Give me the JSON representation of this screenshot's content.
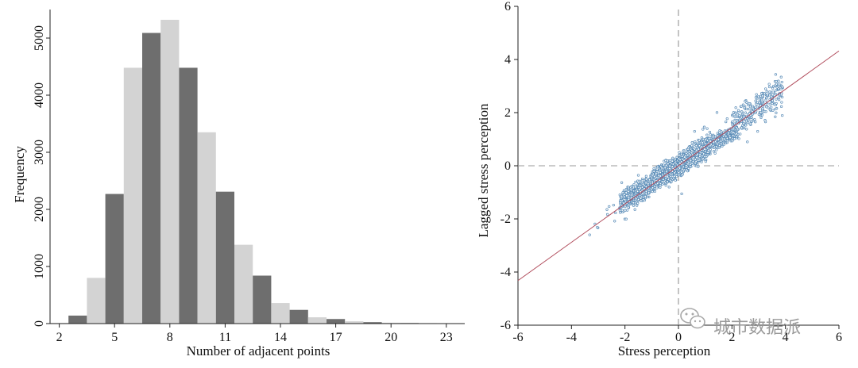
{
  "chart_data": [
    {
      "type": "bar",
      "xlabel": "Number of adjacent points",
      "ylabel": "Frequency",
      "x": [
        2,
        3,
        4,
        5,
        6,
        7,
        8,
        9,
        10,
        11,
        12,
        13,
        14,
        15,
        16,
        17,
        18,
        19,
        20,
        21,
        22,
        23
      ],
      "values": [
        10,
        140,
        800,
        2270,
        4480,
        5090,
        5320,
        4480,
        3350,
        2310,
        1380,
        840,
        360,
        240,
        110,
        80,
        40,
        25,
        15,
        10,
        8,
        5
      ],
      "bar_colors": [
        "#d3d3d3",
        "#6e6e6e"
      ],
      "xlim": [
        1.5,
        24
      ],
      "ylim": [
        0,
        5500
      ],
      "xticks": [
        2,
        5,
        8,
        11,
        14,
        17,
        20,
        23
      ],
      "xtick_labels": [
        "2",
        "5",
        "8",
        "11",
        "14",
        "17",
        "20",
        "23"
      ],
      "yticks": [
        0,
        1000,
        2000,
        3000,
        4000,
        5000
      ],
      "ytick_labels": [
        "0",
        "1000",
        "2000",
        "3000",
        "4000",
        "5000"
      ],
      "grid": false
    },
    {
      "type": "scatter",
      "xlabel": "Stress perception",
      "ylabel": "Lagged stress perception",
      "xlim": [
        -6,
        6
      ],
      "ylim": [
        -6,
        6
      ],
      "xticks": [
        -6,
        -4,
        -2,
        0,
        2,
        4,
        6
      ],
      "xtick_labels": [
        "-6",
        "-4",
        "-2",
        "0",
        "2",
        "4",
        "6"
      ],
      "yticks": [
        -6,
        -4,
        -2,
        0,
        2,
        4,
        6
      ],
      "ytick_labels": [
        "-6",
        "-4",
        "-2",
        "0",
        "2",
        "4",
        "6"
      ],
      "point_color": "#5b8db8",
      "fit_line": {
        "slope": 0.72,
        "intercept": 0,
        "color": "#b04a5a"
      },
      "reference_lines": {
        "x": 0,
        "y": 0,
        "style": "dashed",
        "color": "#999999"
      },
      "point_clusters": [
        {
          "x_range": [
            -2.2,
            -1.0
          ],
          "y_center": [
            -1.4,
            -0.7
          ],
          "y_spread": 0.55,
          "count": 500
        },
        {
          "x_range": [
            -1.0,
            0.0
          ],
          "y_center": [
            -0.6,
            -0.05
          ],
          "y_spread": 0.6,
          "count": 700
        },
        {
          "x_range": [
            0.0,
            1.2
          ],
          "y_center": [
            0.0,
            0.8
          ],
          "y_spread": 0.6,
          "count": 700
        },
        {
          "x_range": [
            1.2,
            2.2
          ],
          "y_center": [
            0.8,
            1.3
          ],
          "y_spread": 0.4,
          "count": 300
        },
        {
          "x_range": [
            2.0,
            3.9
          ],
          "y_center": [
            1.5,
            2.9
          ],
          "y_spread": 0.9,
          "count": 280
        },
        {
          "x_range": [
            -3.5,
            4.5
          ],
          "y_center": [
            -2.5,
            3.2
          ],
          "y_spread": 1.4,
          "count": 60
        }
      ],
      "grid": false
    }
  ],
  "watermark": {
    "text": "城市数据派",
    "icon": "wechat-icon"
  }
}
